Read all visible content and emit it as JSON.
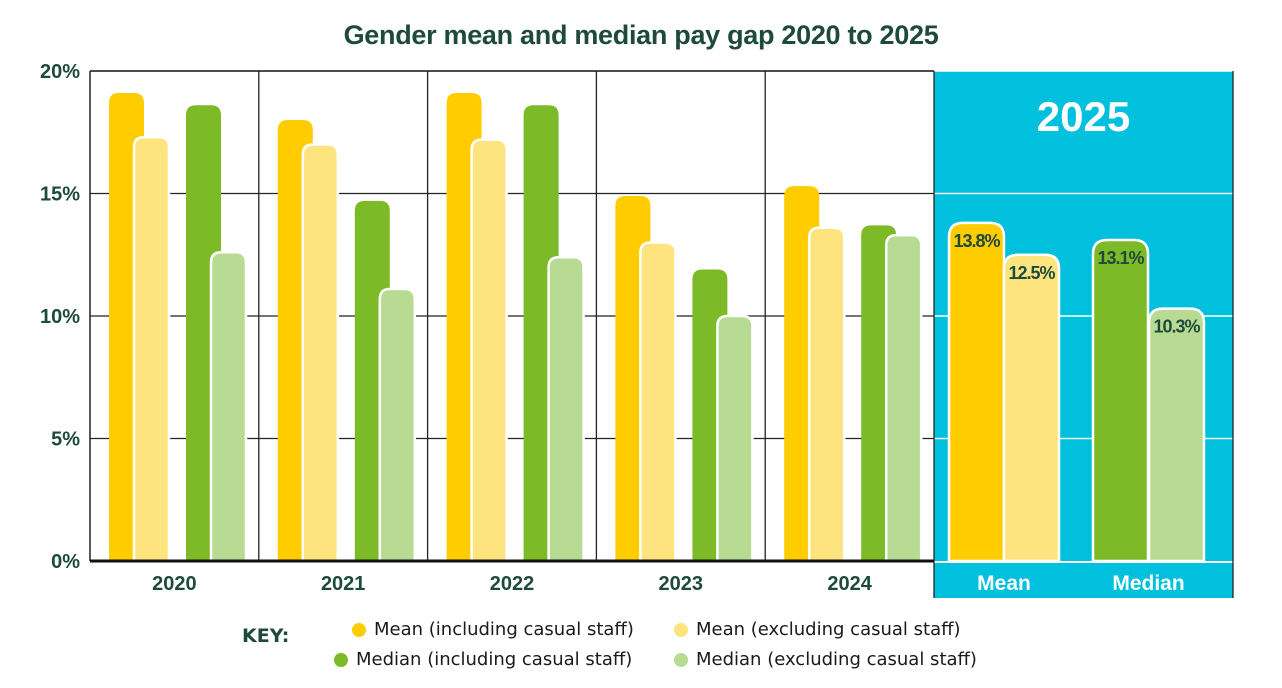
{
  "chart_data": {
    "type": "bar",
    "title": "Gender mean and median pay gap 2020 to 2025",
    "xlabel": "",
    "ylabel": "",
    "ylim": [
      0,
      20
    ],
    "yticks": [
      "0%",
      "5%",
      "10%",
      "15%",
      "20%"
    ],
    "ytick_values": [
      0,
      5,
      10,
      15,
      20
    ],
    "grid": true,
    "categories": [
      "2020",
      "2021",
      "2022",
      "2023",
      "2024"
    ],
    "series": [
      {
        "name": "Mean (including casual staff)",
        "color": "#ffcc00",
        "values": [
          19.1,
          18.0,
          19.1,
          14.9,
          15.3
        ]
      },
      {
        "name": "Mean (excluding casual staff)",
        "color": "#fde47f",
        "values": [
          17.3,
          17.0,
          17.2,
          13.0,
          13.6
        ]
      },
      {
        "name": "Median (including casual staff)",
        "color": "#7cbb27",
        "values": [
          18.6,
          14.7,
          18.6,
          11.9,
          13.7
        ]
      },
      {
        "name": "Median (excluding casual staff)",
        "color": "#b8db94",
        "values": [
          12.6,
          11.1,
          12.4,
          10.0,
          13.3
        ]
      }
    ],
    "highlight": {
      "year": "2025",
      "background": "#00c0dd",
      "groups": [
        {
          "label": "Mean",
          "bars": [
            {
              "series": "Mean (including casual staff)",
              "value": 13.8,
              "label": "13.8%"
            },
            {
              "series": "Mean (excluding casual staff)",
              "value": 12.5,
              "label": "12.5%"
            }
          ]
        },
        {
          "label": "Median",
          "bars": [
            {
              "series": "Median (including casual staff)",
              "value": 13.1,
              "label": "13.1%"
            },
            {
              "series": "Median (excluding casual staff)",
              "value": 10.3,
              "label": "10.3%"
            }
          ]
        }
      ]
    },
    "legend": {
      "title": "KEY:",
      "placement": "bottom",
      "entries": [
        {
          "label": "Mean (including casual staff)",
          "color": "#ffcc00"
        },
        {
          "label": "Mean (excluding casual staff)",
          "color": "#fde47f"
        },
        {
          "label": "Median (including casual staff)",
          "color": "#7cbb27"
        },
        {
          "label": "Median (excluding casual staff)",
          "color": "#b8db94"
        }
      ]
    }
  },
  "colors": {
    "text_dark": "#1d4a3a",
    "highlight_bg": "#00c0dd"
  }
}
